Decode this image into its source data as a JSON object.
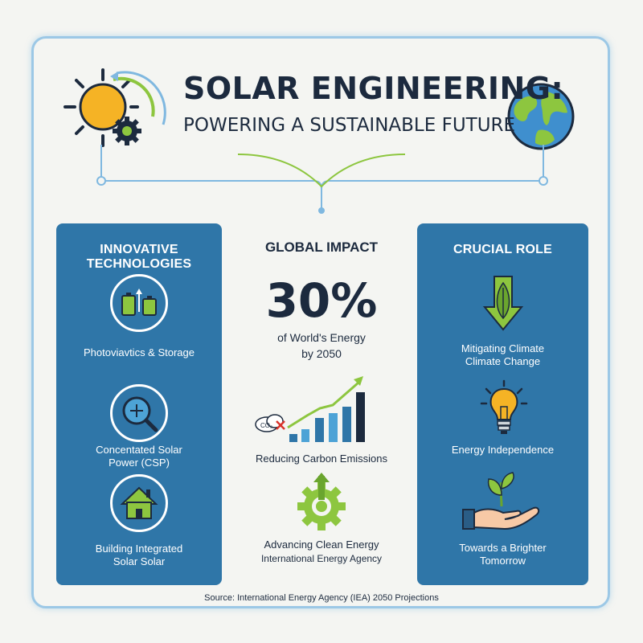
{
  "header": {
    "title": "SOLAR ENGINEERING:",
    "subtitle": "POWERING A SUSTAINABLE FUTURE"
  },
  "left_panel": {
    "heading": "INNOVATIVE TECHNOLOGIES",
    "items": [
      {
        "label": "Photoviavtics & Storage",
        "icon": "battery-icon"
      },
      {
        "label": "Concentated Solar Power (CSP)",
        "icon": "magnifier-icon"
      },
      {
        "label": "Building Integrated Solar Solar",
        "icon": "house-icon"
      }
    ]
  },
  "center": {
    "heading": "GLOBAL IMPACT",
    "stat_value": "30%",
    "stat_caption_line1": "of World's Energy",
    "stat_caption_line2": "by 2050",
    "emissions_label": "Reducing Carbon Emissions",
    "co2_label": "CO₂",
    "clean_energy_label": "Advancing Clean Energy",
    "agency_label": "International Energy Agency"
  },
  "right_panel": {
    "heading": "CRUCIAL ROLE",
    "items": [
      {
        "label_line1": "Mitigating Climate",
        "label_line2": "Climate Change",
        "icon": "leaf-arrow-icon"
      },
      {
        "label_line1": "Energy Independence",
        "label_line2": "",
        "icon": "lightbulb-icon"
      },
      {
        "label_line1": "Towards a Brighter",
        "label_line2": "Tomorrow",
        "icon": "sprout-hand-icon"
      }
    ]
  },
  "footer": {
    "source": "Source: International Energy Agency (IEA) 2050 Projections"
  },
  "colors": {
    "panel_blue": "#2f76a8",
    "accent_green": "#8dc63f",
    "sun_orange": "#f5a623",
    "dark_text": "#1c2a3e"
  }
}
